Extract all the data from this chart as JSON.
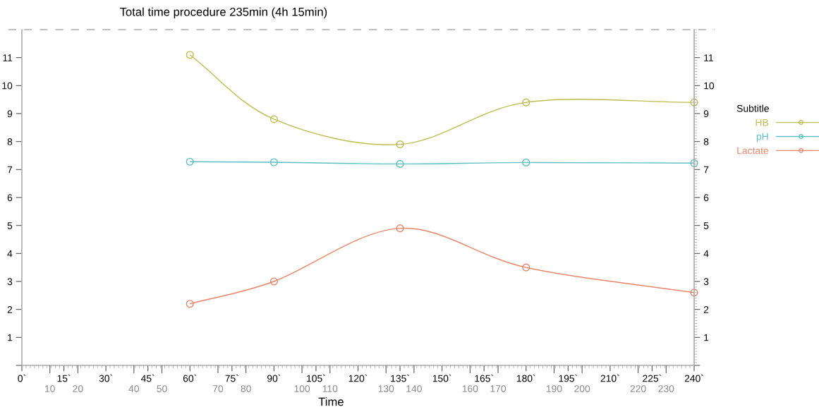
{
  "chart_data": {
    "type": "line",
    "title": "Total time procedure 235min (4h 15min)",
    "xlabel": "Time",
    "legend_title": "Subtitle",
    "x": [
      60,
      90,
      135,
      180,
      240
    ],
    "series": [
      {
        "name": "HB",
        "color": "#bdbd50",
        "values": [
          11.1,
          8.8,
          7.9,
          9.4,
          9.4
        ]
      },
      {
        "name": "pH",
        "color": "#5cc0c0",
        "values": [
          7.28,
          7.26,
          7.2,
          7.25,
          7.23
        ]
      },
      {
        "name": "Lactate",
        "color": "#e8866a",
        "values": [
          2.2,
          3.0,
          4.9,
          3.5,
          2.6
        ]
      }
    ],
    "xlim": [
      0,
      240
    ],
    "xticks": [
      {
        "value": 0,
        "label": "0`"
      },
      {
        "value": 15,
        "label": "15`"
      },
      {
        "value": 30,
        "label": "30`"
      },
      {
        "value": 45,
        "label": "45`"
      },
      {
        "value": 60,
        "label": "60`"
      },
      {
        "value": 75,
        "label": "75`"
      },
      {
        "value": 90,
        "label": "90`"
      },
      {
        "value": 105,
        "label": "105`"
      },
      {
        "value": 120,
        "label": "120`"
      },
      {
        "value": 135,
        "label": "135`"
      },
      {
        "value": 150,
        "label": "150`"
      },
      {
        "value": 165,
        "label": "165`"
      },
      {
        "value": 180,
        "label": "180`"
      },
      {
        "value": 195,
        "label": "195`"
      },
      {
        "value": 210,
        "label": "210`"
      },
      {
        "value": 225,
        "label": "225`"
      },
      {
        "value": 240,
        "label": "240`"
      }
    ],
    "x2lim": [
      0,
      240
    ],
    "x2ticks": [
      10,
      20,
      40,
      50,
      70,
      80,
      100,
      110,
      130,
      140,
      160,
      170,
      190,
      200,
      220,
      230
    ],
    "ylim": [
      0,
      12
    ],
    "yticks": [
      {
        "value": 0,
        "label": null
      },
      1,
      2,
      3,
      4,
      5,
      6,
      7,
      8,
      9,
      10,
      11
    ],
    "y2lim": [
      0,
      12
    ],
    "y2ticks": [
      {
        "value": 0,
        "label": null
      },
      1,
      2,
      3,
      4,
      5,
      6,
      7,
      8,
      9,
      10,
      11
    ],
    "ref_lines": [
      {
        "axis": "y",
        "value": 12,
        "color": "#aaaaaa",
        "line_style": "dashed"
      }
    ],
    "grid": false,
    "legend": "right",
    "marker": "circle",
    "line_style": "solid"
  }
}
